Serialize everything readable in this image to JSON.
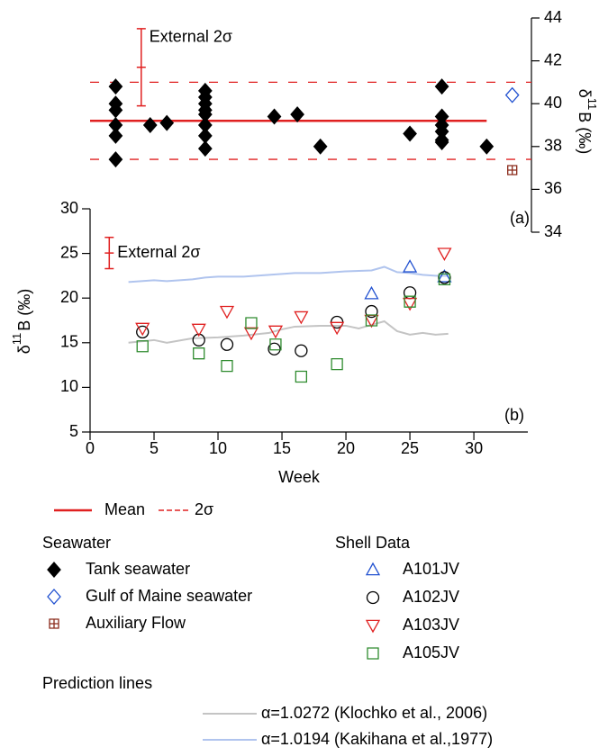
{
  "chart_data": [
    {
      "type": "scatter",
      "panel_label": "(a)",
      "y_label": {
        "delta": "δ",
        "sup": "11",
        "rest": "B (‰)"
      },
      "xlim": [
        0,
        34.5
      ],
      "ylim": [
        34,
        44
      ],
      "yticks": [
        34,
        36,
        38,
        40,
        42,
        44
      ],
      "legend_title": "Seawater",
      "series": [
        {
          "name": "Tank seawater",
          "color": "#000000",
          "marker": "filled-diamond",
          "x": [
            2,
            2,
            2,
            2,
            2,
            2,
            4.7,
            6,
            9,
            9,
            9,
            9,
            9,
            9,
            9,
            9,
            14.4,
            16.2,
            18,
            25,
            27.5,
            27.5,
            27.5,
            27.5,
            27.5,
            27.5,
            31
          ],
          "values": [
            40.8,
            40.0,
            39.7,
            39.0,
            38.5,
            37.4,
            39.0,
            39.1,
            40.6,
            40.3,
            40.0,
            39.7,
            39.5,
            39.0,
            38.5,
            37.9,
            39.4,
            39.5,
            38.0,
            38.6,
            40.8,
            39.4,
            39.0,
            38.7,
            38.3,
            38.2,
            38.0
          ]
        },
        {
          "name": "Gulf of Maine seawater",
          "color": "#2050d0",
          "marker": "open-diamond",
          "x": [
            33
          ],
          "values": [
            40.4
          ]
        },
        {
          "name": "Auxiliary Flow",
          "color": "#8b2a1a",
          "marker": "crossed-square",
          "x": [
            33
          ],
          "values": [
            36.9
          ]
        }
      ],
      "mean": {
        "name": "Mean",
        "color": "#e02020",
        "value": 39.2,
        "x": [
          0,
          31
        ]
      },
      "sigma": {
        "name": "2σ",
        "color": "#e02020",
        "values": [
          41.0,
          37.4
        ]
      },
      "error_bar": {
        "label": "External 2σ",
        "color": "#e02020",
        "x": 4,
        "value": 41.7,
        "error": 1.8
      }
    },
    {
      "type": "scatter",
      "panel_label": "(b)",
      "y_label": {
        "delta": "δ",
        "sup": "11",
        "rest": "B (‰)"
      },
      "x_label": "Week",
      "xlim": [
        0,
        34.5
      ],
      "xticks": [
        0,
        5,
        10,
        15,
        20,
        25,
        30
      ],
      "ylim": [
        5,
        30
      ],
      "yticks": [
        5,
        10,
        15,
        20,
        25,
        30
      ],
      "legend_title": "Shell Data",
      "series": [
        {
          "name": "A101JV",
          "color": "#2050d0",
          "marker": "triangle",
          "x": [
            22,
            25,
            27.7
          ],
          "values": [
            20.5,
            23.5,
            22.4
          ]
        },
        {
          "name": "A102JV",
          "color": "#000000",
          "marker": "circle",
          "x": [
            4.1,
            8.5,
            10.7,
            14.4,
            16.5,
            19.3,
            22,
            25,
            27.7
          ],
          "values": [
            16.2,
            15.3,
            14.8,
            14.3,
            14.1,
            17.3,
            18.5,
            20.6,
            22.3
          ]
        },
        {
          "name": "A103JV",
          "color": "#e02020",
          "marker": "down-triangle",
          "x": [
            4.1,
            8.5,
            10.7,
            12.6,
            14.5,
            16.5,
            19.3,
            22,
            25,
            27.7
          ],
          "values": [
            16.6,
            16.5,
            18.5,
            16.1,
            16.3,
            17.9,
            16.7,
            17.5,
            19.4,
            25.0
          ]
        },
        {
          "name": "A105JV",
          "color": "#2e8b2e",
          "marker": "square",
          "x": [
            4.1,
            8.5,
            10.7,
            12.6,
            14.5,
            16.5,
            19.3,
            22,
            25,
            27.7
          ],
          "values": [
            14.6,
            13.8,
            12.4,
            17.2,
            14.8,
            11.2,
            12.6,
            17.5,
            19.6,
            22.1
          ]
        }
      ],
      "lines_title": "Prediction lines",
      "lines": [
        {
          "name": "α=1.0272 (Klochko et al., 2006)",
          "color": "#c4c4c4",
          "x": [
            3,
            5,
            6,
            8,
            10,
            12,
            14,
            15,
            16,
            18,
            20,
            21,
            22,
            23,
            24,
            25,
            26,
            27,
            28
          ],
          "values": [
            15.0,
            15.3,
            15.0,
            15.5,
            15.6,
            15.8,
            16.1,
            16.5,
            16.8,
            16.9,
            16.9,
            16.6,
            17.0,
            17.4,
            16.3,
            15.9,
            16.1,
            15.9,
            16.0
          ]
        },
        {
          "name": "α=1.0194 (Kakihana et al.,1977)",
          "color": "#b0c4ee",
          "x": [
            3,
            5,
            6,
            8,
            9,
            10,
            12,
            14,
            16,
            18,
            20,
            22,
            23,
            24,
            25,
            26,
            27,
            28
          ],
          "values": [
            21.8,
            22.0,
            21.9,
            22.1,
            22.3,
            22.4,
            22.4,
            22.6,
            22.8,
            22.8,
            23.0,
            23.1,
            23.5,
            22.9,
            22.8,
            22.6,
            22.5,
            22.5
          ]
        }
      ],
      "error_bar": {
        "label": "External 2σ",
        "color": "#e02020",
        "x": 1.5,
        "value": 25.05,
        "error": 1.75
      }
    }
  ]
}
